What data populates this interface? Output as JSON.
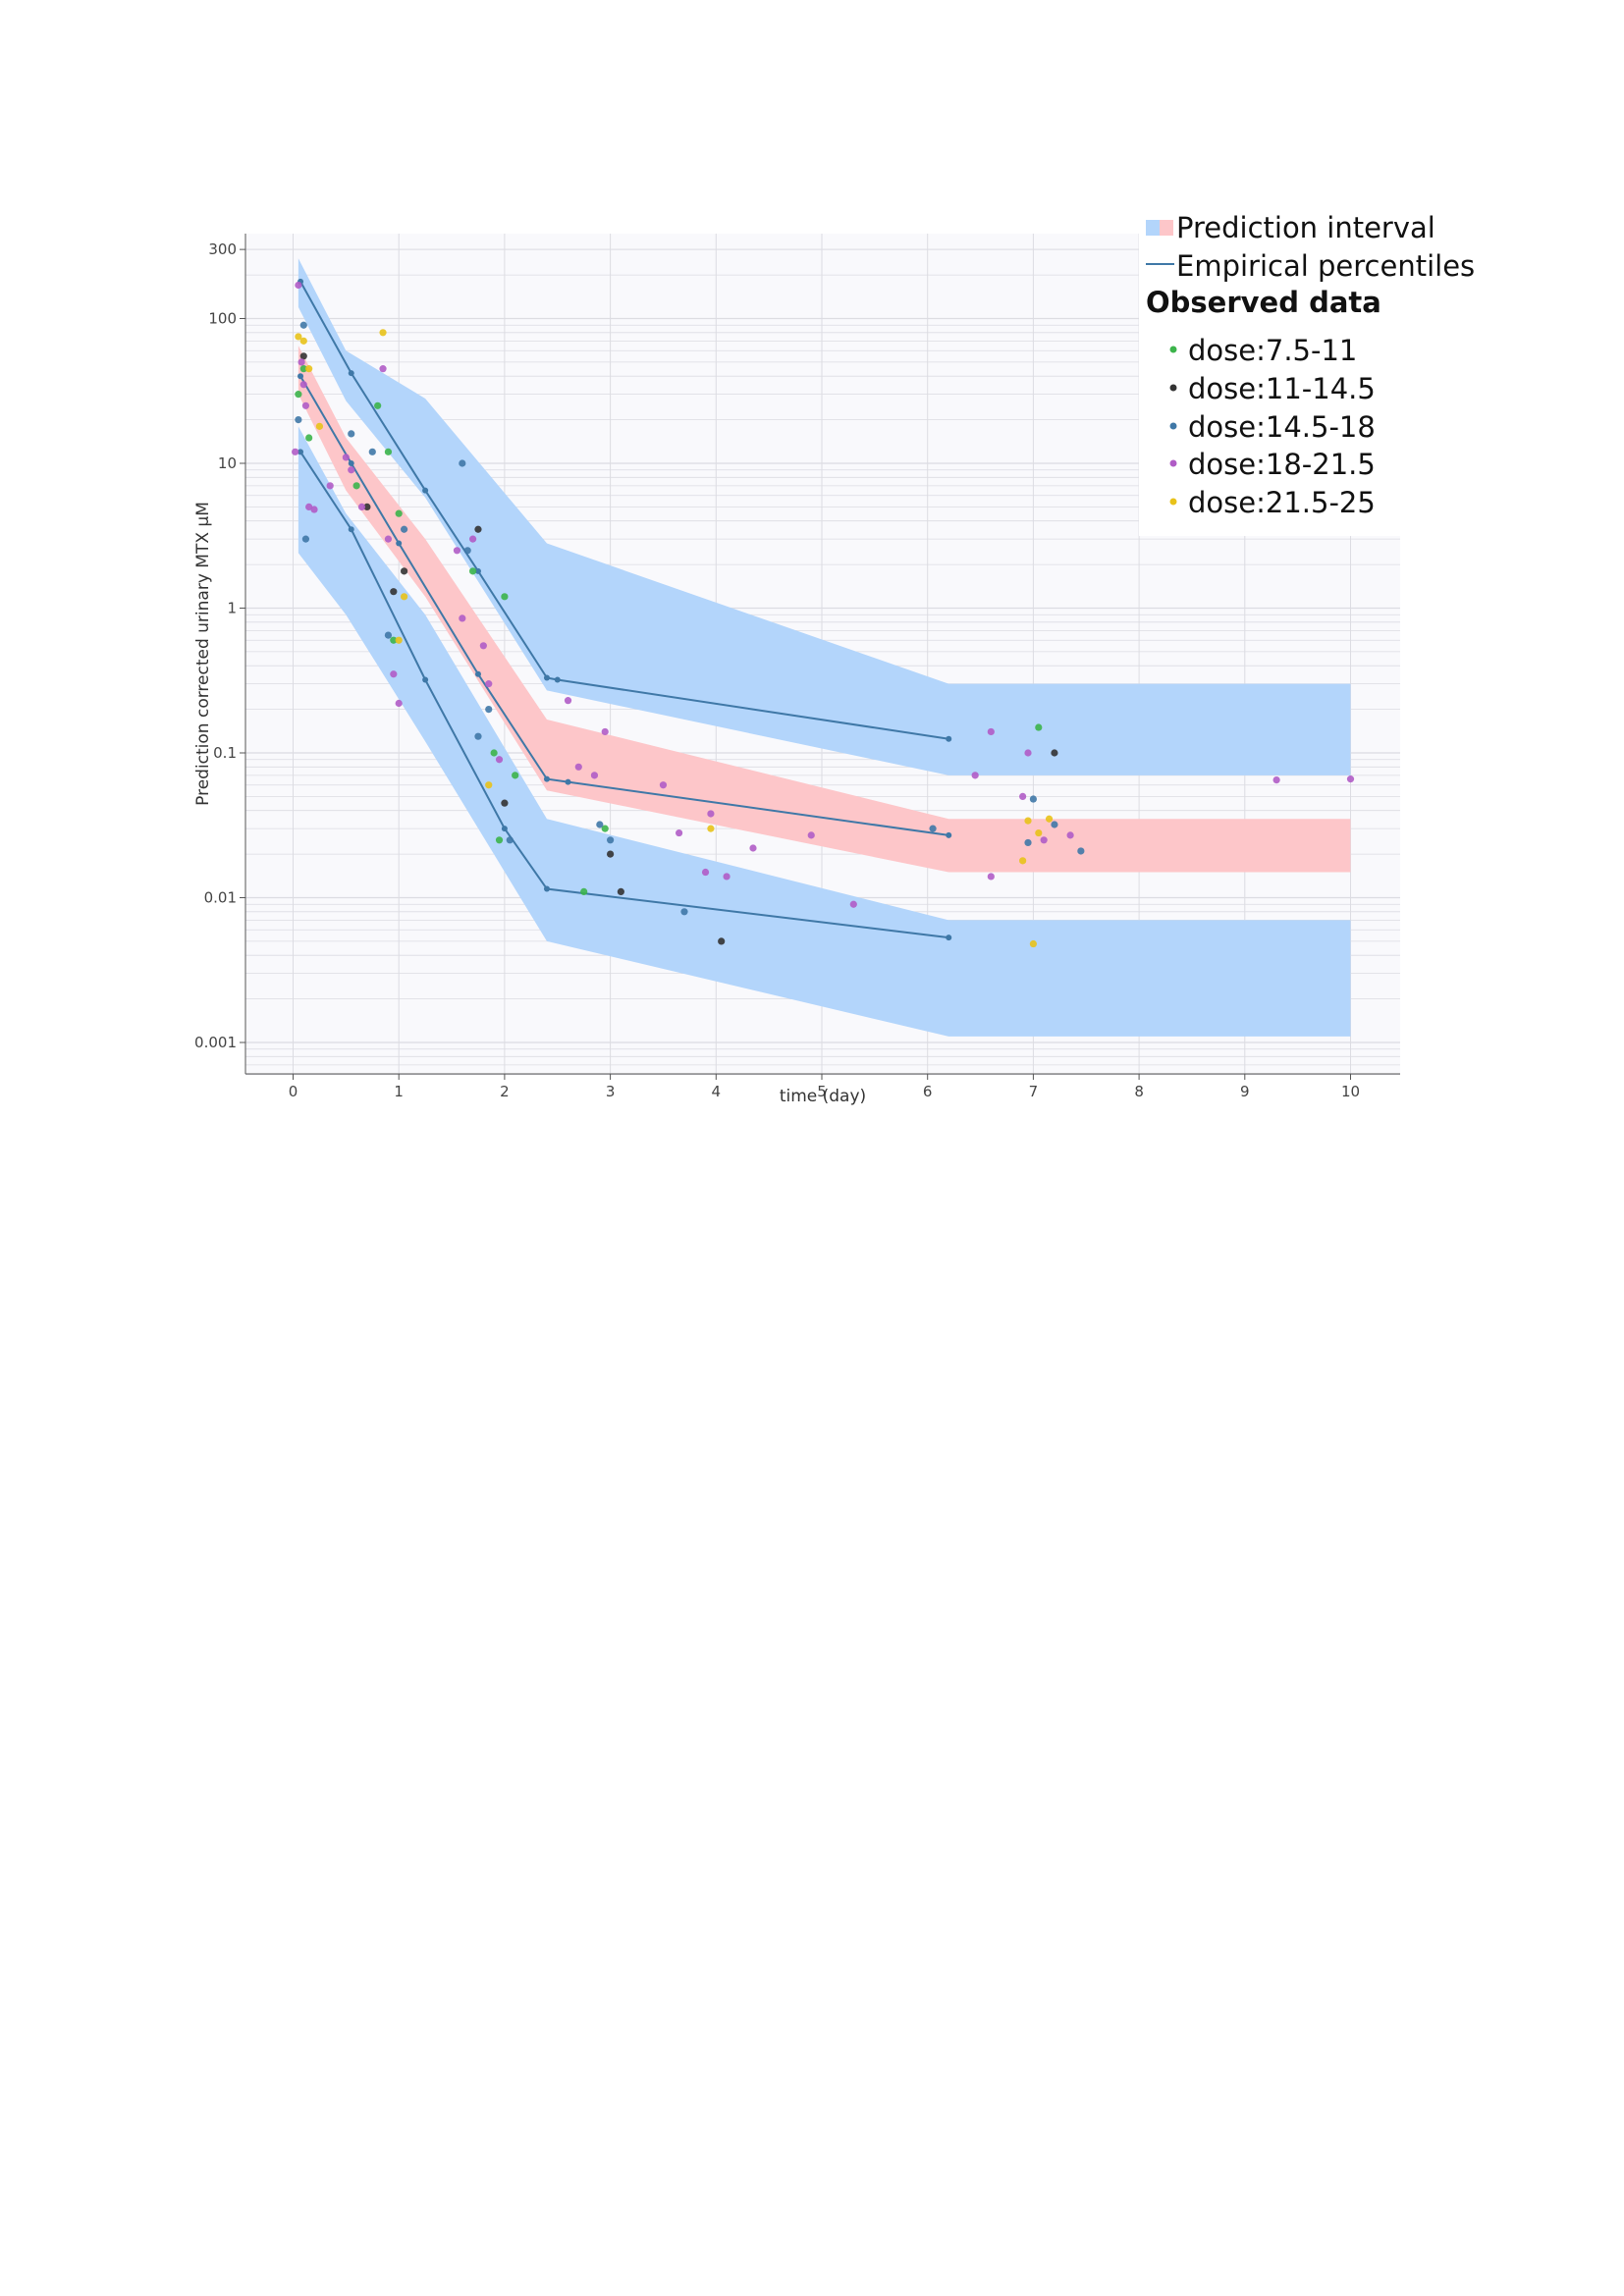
{
  "colors": {
    "pi_blue": "#b3d5fb",
    "pi_red": "#fdc6c9",
    "percentile_line": "#3f78a7",
    "plot_bg": "#f9f9fc",
    "grid": "#dcdce2"
  },
  "chart_data": {
    "type": "scatter",
    "title": "",
    "xlabel": "time (day)",
    "ylabel": "Prediction corrected urinary MTX µM",
    "xlim": [
      -0.45,
      10.5
    ],
    "ylim": [
      0.0006,
      360
    ],
    "yscale": "log",
    "grid": true,
    "legend_position": "top-right",
    "x_ticks": [
      0,
      1,
      2,
      3,
      4,
      5,
      6,
      7,
      8,
      9,
      10
    ],
    "x_tick_labels": [
      "0",
      "1",
      "2",
      "3",
      "4",
      "5",
      "6",
      "7",
      "8",
      "9",
      "10"
    ],
    "y_ticks": [
      0.001,
      0.01,
      0.1,
      1,
      10,
      100,
      300
    ],
    "y_tick_labels": [
      "0.001",
      "0.01",
      "0.1",
      "1",
      "10",
      "100",
      "300"
    ],
    "legend": {
      "prediction_interval": "Prediction interval",
      "empirical_percentiles": "Empirical percentiles",
      "observed_heading": "Observed data"
    },
    "prediction_intervals": [
      {
        "band": "upper",
        "color": "#b3d5fb",
        "upper": [
          [
            0.05,
            260
          ],
          [
            0.5,
            60
          ],
          [
            1.25,
            28
          ],
          [
            2.4,
            2.8
          ],
          [
            6.2,
            0.3
          ],
          [
            10,
            0.3
          ]
        ],
        "lower": [
          [
            0.05,
            120
          ],
          [
            0.5,
            27
          ],
          [
            1.25,
            5.8
          ],
          [
            2.4,
            0.27
          ],
          [
            6.2,
            0.07
          ],
          [
            10,
            0.07
          ]
        ]
      },
      {
        "band": "median",
        "color": "#fdc6c9",
        "upper": [
          [
            0.05,
            65
          ],
          [
            0.5,
            15
          ],
          [
            1.25,
            3.0
          ],
          [
            2.4,
            0.17
          ],
          [
            6.2,
            0.035
          ],
          [
            10,
            0.035
          ]
        ],
        "lower": [
          [
            0.05,
            30
          ],
          [
            0.5,
            6.5
          ],
          [
            1.25,
            1.2
          ],
          [
            2.4,
            0.055
          ],
          [
            6.2,
            0.015
          ],
          [
            10,
            0.015
          ]
        ]
      },
      {
        "band": "lower",
        "color": "#b3d5fb",
        "upper": [
          [
            0.05,
            18
          ],
          [
            0.5,
            4.5
          ],
          [
            1.25,
            0.9
          ],
          [
            2.4,
            0.035
          ],
          [
            6.2,
            0.007
          ],
          [
            10,
            0.007
          ]
        ],
        "lower": [
          [
            0.05,
            2.4
          ],
          [
            0.5,
            0.9
          ],
          [
            1.25,
            0.12
          ],
          [
            2.4,
            0.005
          ],
          [
            6.2,
            0.0011
          ],
          [
            10,
            0.0011
          ]
        ]
      }
    ],
    "empirical_percentiles": [
      {
        "name": "P95",
        "points": [
          [
            0.07,
            180
          ],
          [
            0.55,
            42
          ],
          [
            1.25,
            6.5
          ],
          [
            1.75,
            1.8
          ],
          [
            2.4,
            0.33
          ],
          [
            2.5,
            0.32
          ],
          [
            6.2,
            0.125
          ]
        ]
      },
      {
        "name": "P50",
        "points": [
          [
            0.07,
            40
          ],
          [
            0.55,
            10
          ],
          [
            1.0,
            2.8
          ],
          [
            1.75,
            0.35
          ],
          [
            2.4,
            0.066
          ],
          [
            2.6,
            0.063
          ],
          [
            6.2,
            0.027
          ]
        ]
      },
      {
        "name": "P5",
        "points": [
          [
            0.07,
            12
          ],
          [
            0.55,
            3.5
          ],
          [
            1.25,
            0.32
          ],
          [
            2.0,
            0.03
          ],
          [
            2.4,
            0.0115
          ],
          [
            6.2,
            0.0053
          ]
        ]
      }
    ],
    "series": [
      {
        "name": "dose:7.5-11",
        "color": "#3cb44b",
        "points": [
          [
            0.05,
            30
          ],
          [
            0.1,
            45
          ],
          [
            0.15,
            15
          ],
          [
            0.6,
            7
          ],
          [
            0.8,
            25
          ],
          [
            0.9,
            12
          ],
          [
            0.95,
            0.6
          ],
          [
            1.0,
            4.5
          ],
          [
            1.7,
            1.8
          ],
          [
            1.9,
            0.1
          ],
          [
            1.95,
            0.025
          ],
          [
            2.0,
            1.2
          ],
          [
            2.1,
            0.07
          ],
          [
            2.75,
            0.011
          ],
          [
            2.95,
            0.03
          ],
          [
            7.05,
            0.15
          ]
        ]
      },
      {
        "name": "dose:11-14.5",
        "color": "#333333",
        "points": [
          [
            0.1,
            55
          ],
          [
            0.7,
            5
          ],
          [
            0.95,
            1.3
          ],
          [
            1.05,
            1.8
          ],
          [
            1.75,
            3.5
          ],
          [
            2.0,
            0.045
          ],
          [
            3.0,
            0.02
          ],
          [
            3.1,
            0.011
          ],
          [
            4.05,
            0.005
          ],
          [
            7.2,
            0.1
          ]
        ]
      },
      {
        "name": "dose:14.5-18",
        "color": "#3f78a7",
        "points": [
          [
            0.05,
            20
          ],
          [
            0.1,
            90
          ],
          [
            0.12,
            3
          ],
          [
            0.55,
            16
          ],
          [
            0.75,
            12
          ],
          [
            0.9,
            0.65
          ],
          [
            1.05,
            3.5
          ],
          [
            1.6,
            10
          ],
          [
            1.65,
            2.5
          ],
          [
            1.75,
            0.13
          ],
          [
            1.85,
            0.2
          ],
          [
            2.05,
            0.025
          ],
          [
            2.9,
            0.032
          ],
          [
            3.0,
            0.025
          ],
          [
            3.7,
            0.008
          ],
          [
            6.05,
            0.03
          ],
          [
            6.95,
            0.024
          ],
          [
            7.0,
            0.048
          ],
          [
            7.2,
            0.032
          ],
          [
            7.45,
            0.021
          ]
        ]
      },
      {
        "name": "dose:18-21.5",
        "color": "#b05cc6",
        "points": [
          [
            0.02,
            12
          ],
          [
            0.05,
            170
          ],
          [
            0.08,
            50
          ],
          [
            0.1,
            35
          ],
          [
            0.12,
            25
          ],
          [
            0.15,
            5
          ],
          [
            0.2,
            4.8
          ],
          [
            0.35,
            7
          ],
          [
            0.5,
            11
          ],
          [
            0.55,
            9
          ],
          [
            0.65,
            5
          ],
          [
            0.85,
            45
          ],
          [
            0.9,
            3
          ],
          [
            0.95,
            0.35
          ],
          [
            1.0,
            0.22
          ],
          [
            1.55,
            2.5
          ],
          [
            1.6,
            0.85
          ],
          [
            1.7,
            3
          ],
          [
            1.8,
            0.55
          ],
          [
            1.85,
            0.3
          ],
          [
            1.95,
            0.09
          ],
          [
            2.6,
            0.23
          ],
          [
            2.7,
            0.08
          ],
          [
            2.85,
            0.07
          ],
          [
            2.95,
            0.14
          ],
          [
            3.5,
            0.06
          ],
          [
            3.65,
            0.028
          ],
          [
            3.9,
            0.015
          ],
          [
            3.95,
            0.038
          ],
          [
            4.1,
            0.014
          ],
          [
            4.35,
            0.022
          ],
          [
            4.9,
            0.027
          ],
          [
            5.3,
            0.009
          ],
          [
            6.45,
            0.07
          ],
          [
            6.6,
            0.14
          ],
          [
            6.6,
            0.014
          ],
          [
            6.9,
            0.05
          ],
          [
            6.95,
            0.1
          ],
          [
            7.1,
            0.025
          ],
          [
            7.35,
            0.027
          ],
          [
            9.3,
            0.065
          ],
          [
            10.0,
            0.066
          ]
        ]
      },
      {
        "name": "dose:21.5-25",
        "color": "#e8c21a",
        "points": [
          [
            0.05,
            75
          ],
          [
            0.1,
            70
          ],
          [
            0.15,
            45
          ],
          [
            0.25,
            18
          ],
          [
            0.85,
            80
          ],
          [
            1.0,
            0.6
          ],
          [
            1.05,
            1.2
          ],
          [
            1.85,
            0.06
          ],
          [
            3.95,
            0.03
          ],
          [
            6.9,
            0.018
          ],
          [
            6.95,
            0.034
          ],
          [
            7.0,
            0.0048
          ],
          [
            7.05,
            0.028
          ],
          [
            7.15,
            0.035
          ]
        ]
      }
    ]
  }
}
